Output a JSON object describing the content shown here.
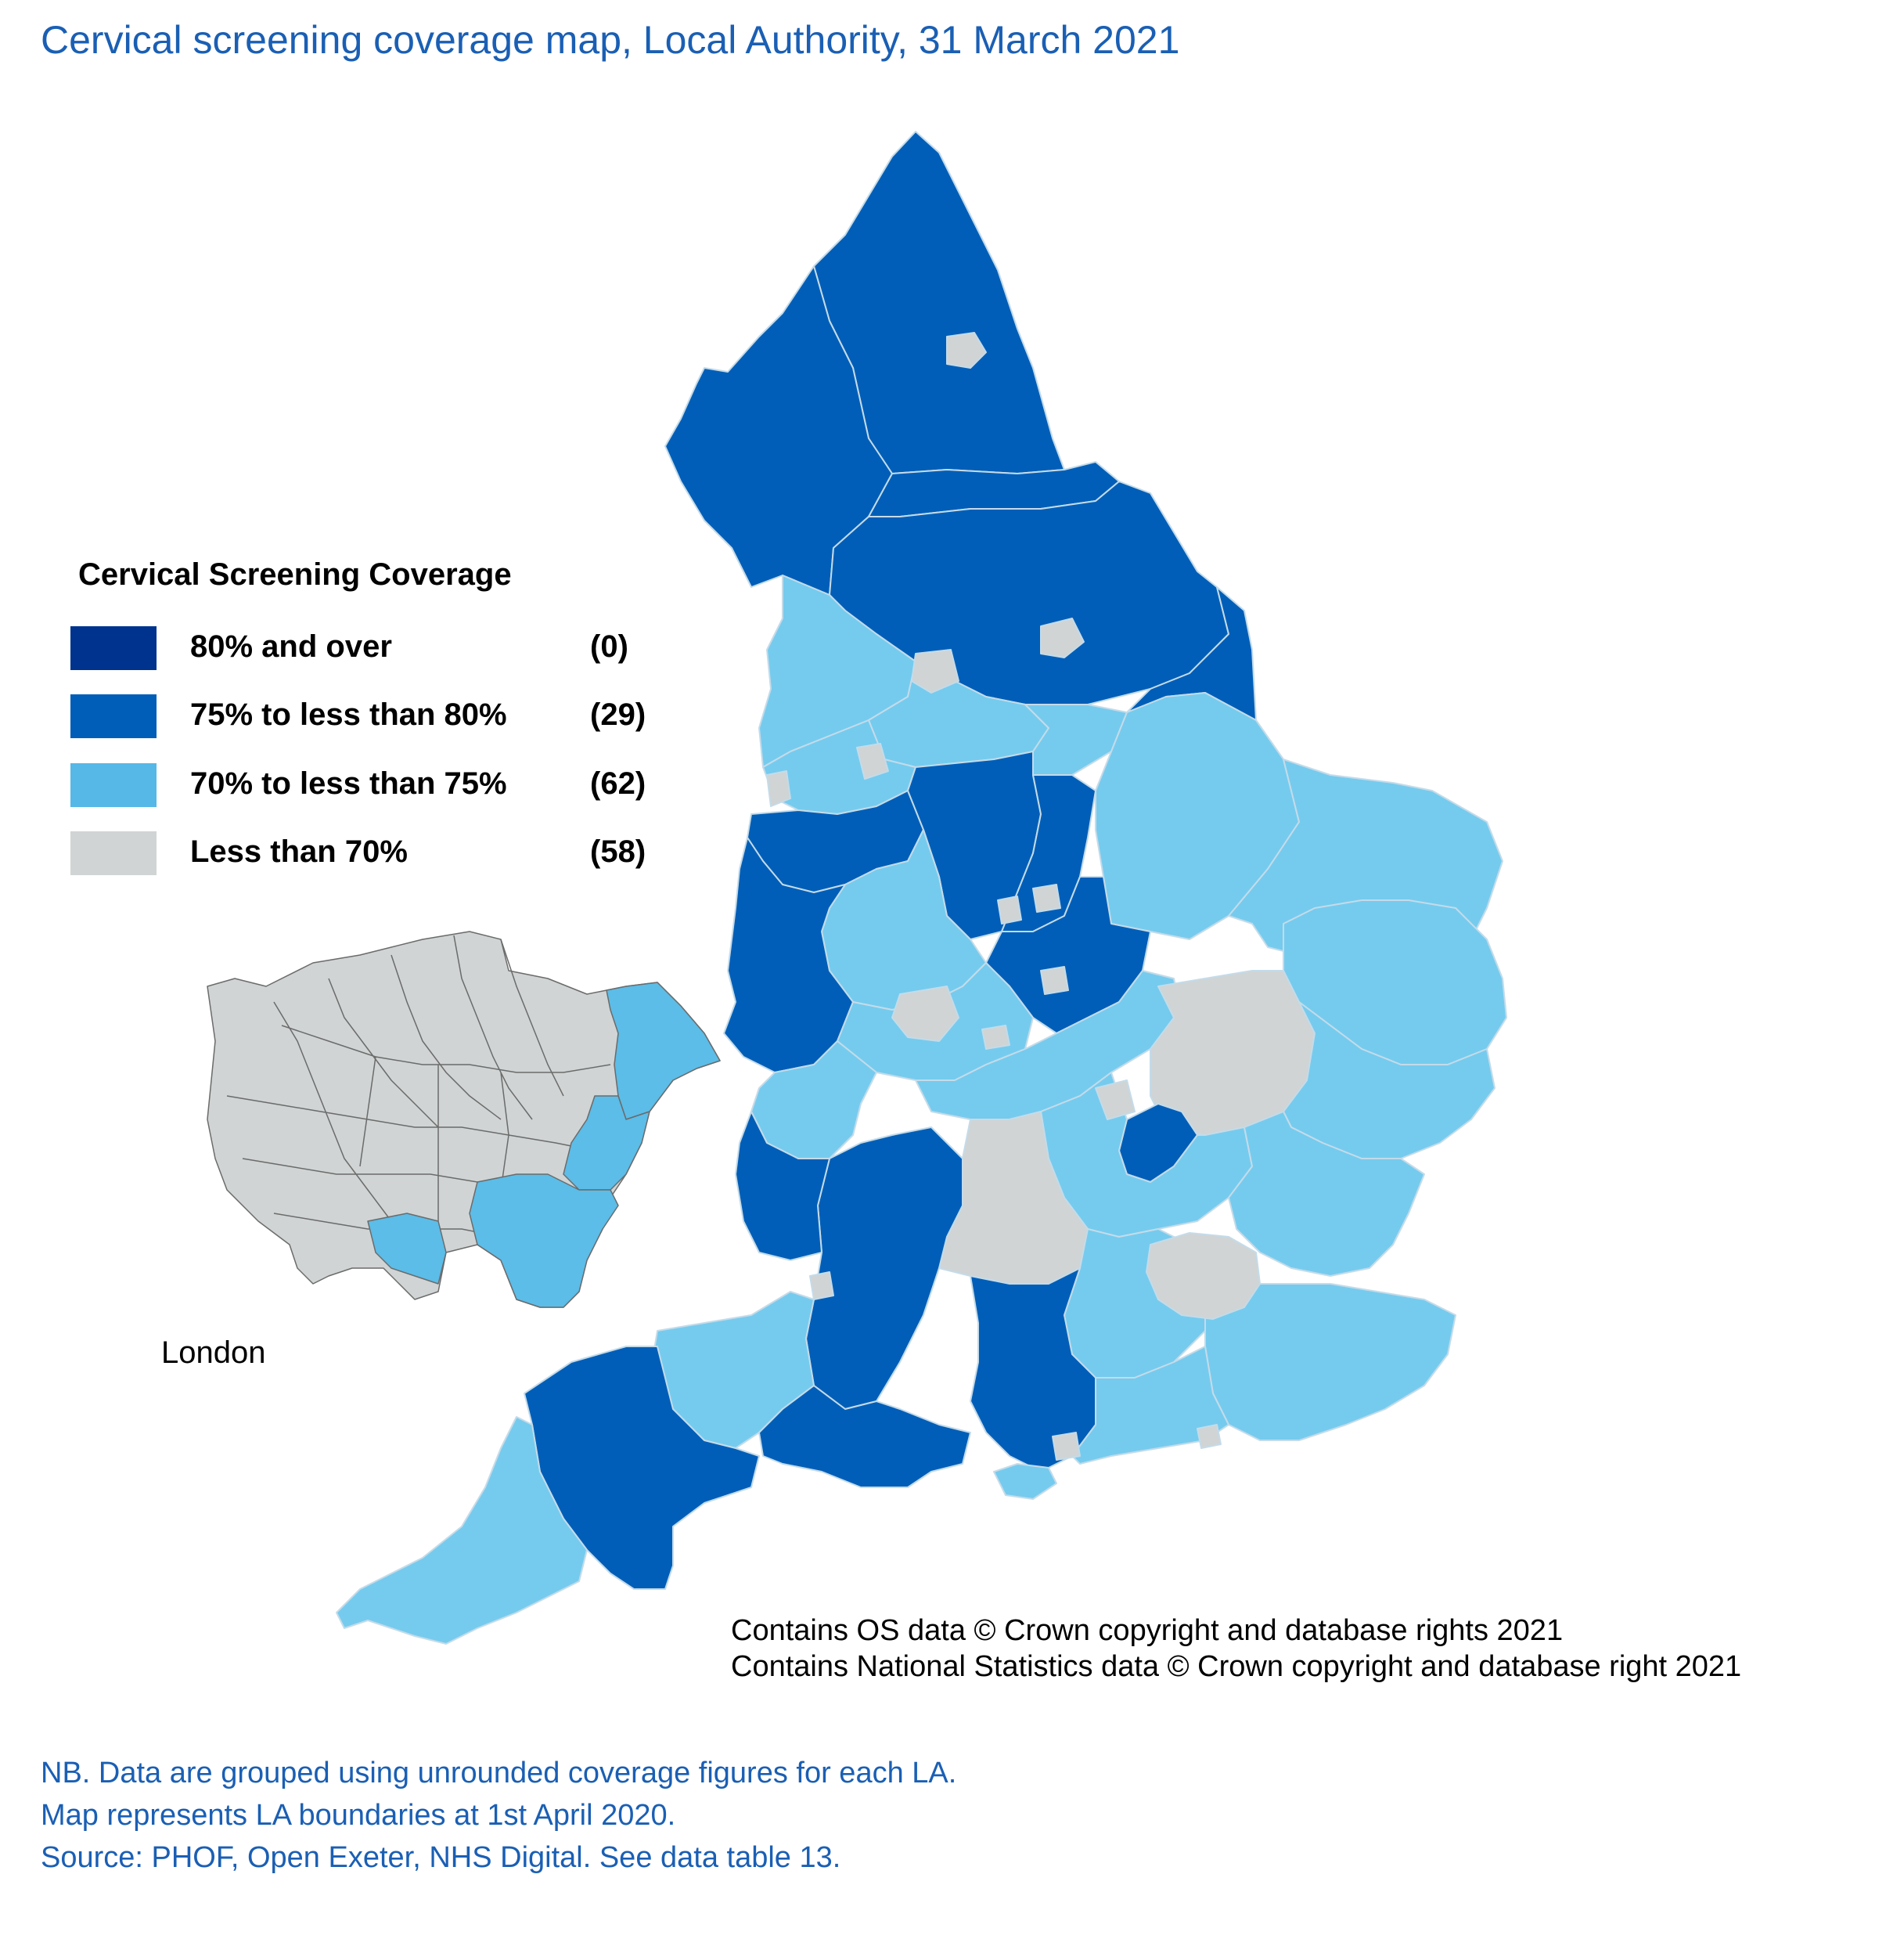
{
  "title": "Cervical screening coverage map, Local Authority, 31 March 2021",
  "legend": {
    "title": "Cervical Screening Coverage",
    "items": [
      {
        "label": "80% and over",
        "count": "(0)",
        "color": "#00338d"
      },
      {
        "label": "75% to less than 80%",
        "count": "(29)",
        "color": "#005eb8"
      },
      {
        "label": "70% to less than 75%",
        "count": "(62)",
        "color": "#56b8e6"
      },
      {
        "label": "Less than 70%",
        "count": "(58)",
        "color": "#d0d4d4"
      }
    ]
  },
  "inset_label": "London",
  "copyright": {
    "line1": "Contains OS data © Crown copyright and database rights 2021",
    "line2": "Contains National Statistics data © Crown copyright and database right 2021"
  },
  "notes": {
    "line1": "NB. Data are grouped using unrounded coverage figures for each LA.",
    "line2": "Map represents LA boundaries at 1st April 2020.",
    "line3": "Source: PHOF, Open Exeter, NHS Digital. See data table 13."
  },
  "colors": {
    "band_75_80": "#005eb8",
    "band_70_75": "#75cbee",
    "band_70_75_london": "#5bbde8",
    "band_below_70": "#d0d4d4",
    "text_blue": "#1a5fb4"
  }
}
